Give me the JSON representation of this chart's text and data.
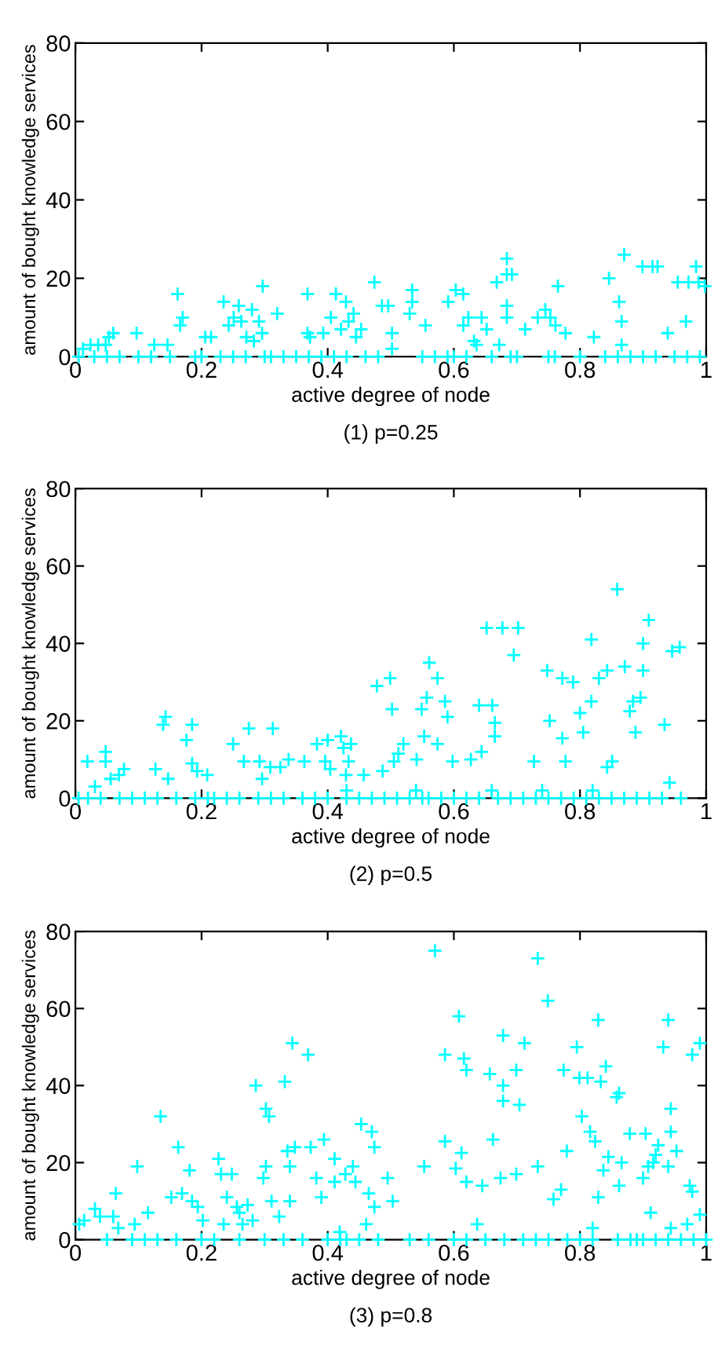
{
  "chart_data": [
    {
      "type": "scatter",
      "xlabel": "active degree of node",
      "ylabel": "amount of bought knowledge services",
      "annotations": [
        "(1) p=0.25"
      ],
      "xlim": [
        0,
        1
      ],
      "ylim": [
        0,
        80
      ],
      "xticks": [
        0,
        0.2,
        0.4,
        0.6,
        0.8,
        1
      ],
      "yticks": [
        0,
        20,
        40,
        60,
        80
      ],
      "grid": false,
      "marker": "cross",
      "series": [
        {
          "color": "#00ffff",
          "x": [
            0.012,
            0.024,
            0.036,
            0.048,
            0.053,
            0.06,
            0.097,
            0.125,
            0.146,
            0.162,
            0.166,
            0.17,
            0.206,
            0.215,
            0.235,
            0.243,
            0.251,
            0.259,
            0.263,
            0.271,
            0.28,
            0.283,
            0.291,
            0.296,
            0.297,
            0.32,
            0.368,
            0.368,
            0.372,
            0.393,
            0.405,
            0.413,
            0.421,
            0.429,
            0.433,
            0.441,
            0.445,
            0.453,
            0.474,
            0.486,
            0.496,
            0.502,
            0.502,
            0.53,
            0.534,
            0.534,
            0.555,
            0.591,
            0.603,
            0.615,
            0.615,
            0.623,
            0.632,
            0.636,
            0.644,
            0.652,
            0.668,
            0.672,
            0.684,
            0.684,
            0.684,
            0.684,
            0.692,
            0.713,
            0.733,
            0.745,
            0.753,
            0.761,
            0.765,
            0.777,
            0.822,
            0.846,
            0.862,
            0.866,
            0.866,
            0.87,
            0.899,
            0.915,
            0.923,
            0.939,
            0.955,
            0.968,
            0.972,
            0.984,
            0.988,
            0.998,
            0.005,
            0.03,
            0.05,
            0.07,
            0.1,
            0.12,
            0.15,
            0.19,
            0.2,
            0.23,
            0.25,
            0.27,
            0.3,
            0.31,
            0.33,
            0.35,
            0.37,
            0.39,
            0.41,
            0.43,
            0.46,
            0.48,
            0.55,
            0.57,
            0.59,
            0.6,
            0.62,
            0.66,
            0.69,
            0.7,
            0.75,
            0.76,
            0.8,
            0.84,
            0.86,
            0.88,
            0.9,
            0.92,
            0.95,
            0.97,
            0.99
          ],
          "values": [
            2,
            3,
            3,
            3,
            5,
            6,
            6,
            3,
            3,
            16,
            8,
            10,
            5,
            5,
            14,
            8,
            10,
            13,
            9,
            5,
            12,
            4,
            9,
            6,
            18,
            11,
            16,
            6,
            5,
            6,
            10,
            16,
            7,
            14,
            9,
            11,
            5,
            7,
            19,
            13,
            13,
            6,
            2,
            11,
            14,
            17,
            8,
            14,
            17,
            16,
            8,
            10,
            4,
            3,
            10,
            7,
            19,
            3,
            25,
            21,
            13,
            10,
            21,
            7,
            10,
            12,
            10,
            8,
            18,
            6,
            5,
            20,
            14,
            9,
            3,
            26,
            23,
            23,
            23,
            6,
            19,
            9,
            19,
            23,
            19,
            18,
            0,
            0,
            0,
            0,
            0,
            0,
            0,
            0,
            0,
            0,
            0,
            0,
            0,
            0,
            0,
            0,
            0,
            0,
            0,
            0,
            0,
            0,
            0,
            0,
            0,
            0,
            0,
            0,
            0,
            0,
            0,
            0,
            0,
            0,
            0,
            0,
            0,
            0,
            0,
            0,
            0
          ]
        }
      ]
    },
    {
      "type": "scatter",
      "xlabel": "active degree of node",
      "ylabel": "amount of bought knowledge services",
      "annotations": [
        "(2) p=0.5"
      ],
      "xlim": [
        0,
        1
      ],
      "ylim": [
        0,
        80
      ],
      "xticks": [
        0,
        0.2,
        0.4,
        0.6,
        0.8,
        1
      ],
      "yticks": [
        0,
        20,
        40,
        60,
        80
      ],
      "grid": false,
      "marker": "cross",
      "series": [
        {
          "color": "#00ffff",
          "x": [
            0.019,
            0.031,
            0.048,
            0.048,
            0.056,
            0.069,
            0.077,
            0.127,
            0.139,
            0.143,
            0.147,
            0.176,
            0.185,
            0.185,
            0.193,
            0.209,
            0.25,
            0.267,
            0.275,
            0.292,
            0.296,
            0.313,
            0.309,
            0.325,
            0.338,
            0.363,
            0.383,
            0.4,
            0.396,
            0.404,
            0.421,
            0.425,
            0.429,
            0.433,
            0.437,
            0.457,
            0.478,
            0.487,
            0.499,
            0.502,
            0.505,
            0.512,
            0.52,
            0.541,
            0.549,
            0.557,
            0.553,
            0.561,
            0.574,
            0.574,
            0.586,
            0.59,
            0.598,
            0.627,
            0.64,
            0.644,
            0.652,
            0.661,
            0.665,
            0.665,
            0.677,
            0.702,
            0.695,
            0.727,
            0.748,
            0.752,
            0.772,
            0.772,
            0.777,
            0.789,
            0.8,
            0.805,
            0.818,
            0.818,
            0.83,
            0.843,
            0.843,
            0.851,
            0.859,
            0.871,
            0.879,
            0.884,
            0.888,
            0.896,
            0.9,
            0.9,
            0.909,
            0.934,
            0.942,
            0.946,
            0.958,
            0.54,
            0.66,
            0.82,
            0.74,
            0.43,
            0.005,
            0.02,
            0.04,
            0.07,
            0.09,
            0.11,
            0.13,
            0.16,
            0.19,
            0.21,
            0.22,
            0.24,
            0.26,
            0.29,
            0.31,
            0.33,
            0.36,
            0.38,
            0.4,
            0.43,
            0.45,
            0.47,
            0.49,
            0.51,
            0.53,
            0.55,
            0.56,
            0.58,
            0.6,
            0.62,
            0.64,
            0.67,
            0.69,
            0.71,
            0.73,
            0.75,
            0.77,
            0.79,
            0.81,
            0.83,
            0.85,
            0.87,
            0.89,
            0.91,
            0.93,
            0.96
          ],
          "values": [
            9.5,
            3,
            12,
            9.5,
            5,
            6,
            7.5,
            7.5,
            19,
            21,
            5,
            15,
            19,
            9,
            7,
            6,
            14,
            9.5,
            18,
            9.5,
            5,
            18,
            8,
            8,
            10,
            9.5,
            14,
            15,
            9.5,
            7.5,
            16,
            13,
            6,
            9.5,
            14,
            6,
            29,
            7,
            31,
            23,
            9.5,
            11.5,
            14,
            10,
            23,
            26,
            16,
            35,
            31,
            14,
            25,
            21,
            9.5,
            10,
            24,
            12,
            44,
            24,
            16,
            19.5,
            44,
            44,
            37,
            9.5,
            33,
            20,
            31,
            15.5,
            9.5,
            30,
            22,
            17,
            41,
            25,
            31,
            33,
            8,
            9.5,
            54,
            34,
            22.5,
            25,
            17,
            26,
            40,
            33,
            46,
            19,
            4,
            38,
            39,
            2,
            2,
            2,
            2,
            2,
            0,
            0,
            0,
            0,
            0,
            0,
            0,
            0,
            0,
            0,
            0,
            0,
            0,
            0,
            0,
            0,
            0,
            0,
            0,
            0,
            0,
            0,
            0,
            0,
            0,
            0,
            0,
            0,
            0,
            0,
            0,
            0,
            0,
            0,
            0,
            0,
            0,
            0,
            0,
            0,
            0,
            0,
            0,
            0,
            0,
            0
          ]
        }
      ]
    },
    {
      "type": "scatter",
      "xlabel": "active degree of node",
      "ylabel": "amount of bought knowledge services",
      "annotations": [
        "(3) p=0.8"
      ],
      "xlim": [
        0,
        1
      ],
      "ylim": [
        0,
        80
      ],
      "xticks": [
        0,
        0.2,
        0.4,
        0.6,
        0.8,
        1
      ],
      "yticks": [
        0,
        20,
        40,
        60,
        80
      ],
      "grid": false,
      "marker": "cross",
      "series": [
        {
          "color": "#00ffff",
          "x": [
            0.006,
            0.014,
            0.031,
            0.039,
            0.06,
            0.064,
            0.068,
            0.094,
            0.098,
            0.115,
            0.135,
            0.152,
            0.163,
            0.169,
            0.181,
            0.185,
            0.194,
            0.202,
            0.227,
            0.231,
            0.235,
            0.24,
            0.248,
            0.256,
            0.26,
            0.265,
            0.273,
            0.281,
            0.286,
            0.298,
            0.302,
            0.302,
            0.307,
            0.311,
            0.323,
            0.332,
            0.336,
            0.34,
            0.34,
            0.344,
            0.348,
            0.369,
            0.373,
            0.382,
            0.39,
            0.394,
            0.411,
            0.411,
            0.419,
            0.428,
            0.44,
            0.444,
            0.453,
            0.461,
            0.465,
            0.47,
            0.474,
            0.474,
            0.495,
            0.503,
            0.553,
            0.57,
            0.586,
            0.586,
            0.603,
            0.608,
            0.612,
            0.616,
            0.62,
            0.62,
            0.637,
            0.645,
            0.657,
            0.662,
            0.674,
            0.678,
            0.678,
            0.678,
            0.699,
            0.699,
            0.704,
            0.712,
            0.733,
            0.733,
            0.749,
            0.758,
            0.77,
            0.774,
            0.779,
            0.795,
            0.799,
            0.803,
            0.812,
            0.816,
            0.82,
            0.824,
            0.829,
            0.829,
            0.833,
            0.837,
            0.841,
            0.845,
            0.858,
            0.862,
            0.862,
            0.866,
            0.879,
            0.9,
            0.904,
            0.908,
            0.912,
            0.916,
            0.92,
            0.924,
            0.932,
            0.94,
            0.94,
            0.944,
            0.944,
            0.953,
            0.944,
            0.974,
            0.978,
            0.978,
            0.97,
            0.99,
            0.99,
            0.05,
            0.09,
            0.11,
            0.13,
            0.16,
            0.2,
            0.22,
            0.26,
            0.3,
            0.33,
            0.36,
            0.4,
            0.42,
            0.43,
            0.45,
            0.48,
            0.53,
            0.56,
            0.6,
            0.62,
            0.65,
            0.68,
            0.71,
            0.73,
            0.75,
            0.78,
            0.8,
            0.82,
            0.86,
            0.88,
            0.89,
            0.9,
            0.92,
            0.94,
            0.96,
            0.98,
            1.0
          ],
          "values": [
            4,
            5,
            8,
            6,
            6,
            12,
            3,
            4,
            19,
            7,
            32,
            11,
            24,
            12,
            18,
            10,
            8.5,
            5,
            21,
            17,
            4,
            11,
            17,
            8.5,
            7,
            4,
            9,
            5,
            40,
            16,
            19,
            34,
            32,
            10,
            6,
            41,
            23,
            10,
            19,
            51,
            24,
            48,
            24,
            16,
            11,
            26,
            21,
            15,
            2,
            17,
            19,
            15,
            30,
            4,
            12,
            28,
            24,
            8.5,
            16,
            10,
            19,
            75,
            48,
            25.5,
            18.5,
            58,
            22.5,
            47,
            44,
            15,
            4,
            14,
            43,
            26,
            16,
            53,
            40,
            36,
            44,
            17,
            35,
            51,
            73,
            19,
            62,
            10.5,
            13,
            44,
            23,
            50,
            42,
            32,
            42,
            28,
            3,
            25.5,
            57,
            11,
            41,
            18,
            45,
            21.5,
            37,
            38,
            14,
            20,
            27.5,
            16,
            27.5,
            19,
            7,
            20,
            22,
            24.5,
            50,
            19,
            57,
            34,
            28,
            23,
            3,
            14,
            48,
            12.5,
            4,
            51,
            6.5,
            0,
            0,
            0,
            0,
            0,
            0,
            0,
            0,
            0,
            0,
            0,
            0,
            0,
            0,
            0,
            0,
            0,
            0,
            0,
            0,
            0,
            0,
            0,
            0,
            0,
            0,
            0,
            0,
            0,
            0,
            0,
            0,
            0,
            0,
            0,
            0,
            0
          ]
        }
      ]
    }
  ]
}
